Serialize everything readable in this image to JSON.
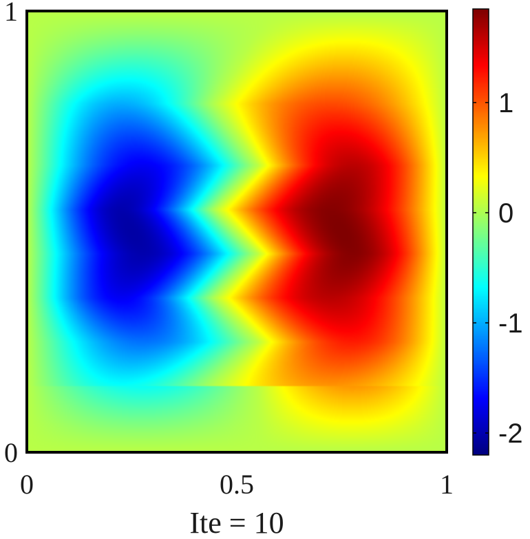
{
  "chart_data": {
    "type": "heatmap",
    "title": "",
    "xlabel": "Ite = 10",
    "ylabel": "",
    "xlim": [
      0,
      1
    ],
    "ylim": [
      0,
      1
    ],
    "x_ticks": [
      "0",
      "0.5",
      "1"
    ],
    "y_ticks": [
      "0",
      "1"
    ],
    "colormap": "jet",
    "colorbar": {
      "range": [
        -2.2,
        1.85
      ],
      "ticks": [
        {
          "value": -2,
          "label": "-2"
        },
        {
          "value": -1,
          "label": "-1"
        },
        {
          "value": 0,
          "label": "0"
        },
        {
          "value": 1,
          "label": "1"
        }
      ]
    },
    "field": {
      "description_of_structure": "two vortices: negative minimum near (0.25, 0.5), positive maximum near (0.75, 0.5), with a zig-zag interface near x = 0.5",
      "min_center": [
        0.25,
        0.49
      ],
      "min_value": -2.1,
      "max_center": [
        0.75,
        0.51
      ],
      "max_value": 1.8,
      "interface_x": [
        0.45,
        0.55
      ],
      "interface_vertices_y": [
        0.96,
        0.79,
        0.65,
        0.55,
        0.45,
        0.35,
        0.25,
        0.15
      ]
    }
  }
}
